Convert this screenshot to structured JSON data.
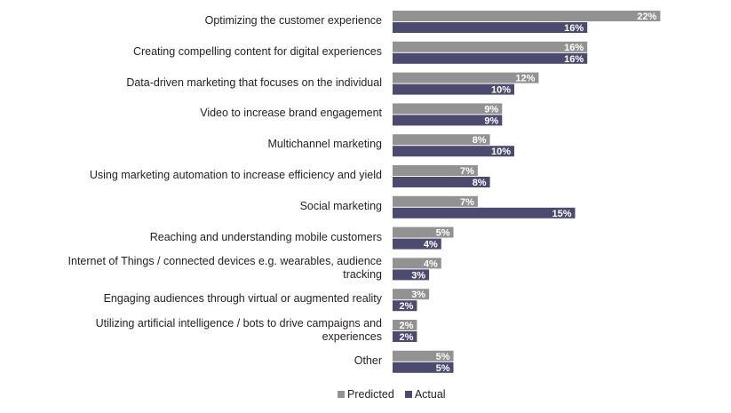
{
  "colors": {
    "predicted": "#929292",
    "actual": "#4c4a6f",
    "label_text": "#ffffff",
    "text": "#231f20"
  },
  "chart_data": {
    "type": "bar",
    "orientation": "horizontal",
    "title": "",
    "xlabel": "",
    "ylabel": "",
    "xlim": [
      0,
      22
    ],
    "categories": [
      "Optimizing the customer experience",
      "Creating compelling content for digital experiences",
      "Data-driven marketing that focuses on the individual",
      "Video to increase brand engagement",
      "Multichannel marketing",
      "Using marketing automation to increase efficiency and yield",
      "Social marketing",
      "Reaching and understanding mobile customers",
      "Internet of Things / connected devices e.g. wearables, audience tracking",
      "Engaging audiences through virtual or augmented reality",
      "Utilizing artificial intelligence / bots to drive campaigns and experiences",
      "Other"
    ],
    "series": [
      {
        "name": "Predicted",
        "values": [
          22,
          16,
          12,
          9,
          8,
          7,
          7,
          5,
          4,
          3,
          2,
          5
        ],
        "labels": [
          "22%",
          "16%",
          "12%",
          "9%",
          "8%",
          "7%",
          "7%",
          "5%",
          "4%",
          "3%",
          "2%",
          "5%"
        ]
      },
      {
        "name": "Actual",
        "values": [
          16,
          16,
          10,
          9,
          10,
          8,
          15,
          4,
          3,
          2,
          2,
          5
        ],
        "labels": [
          "16%",
          "16%",
          "10%",
          "9%",
          "10%",
          "8%",
          "15%",
          "4%",
          "3%",
          "2%",
          "2%",
          "5%"
        ]
      }
    ],
    "legend": {
      "position": "bottom",
      "entries": [
        "Predicted",
        "Actual"
      ]
    }
  }
}
